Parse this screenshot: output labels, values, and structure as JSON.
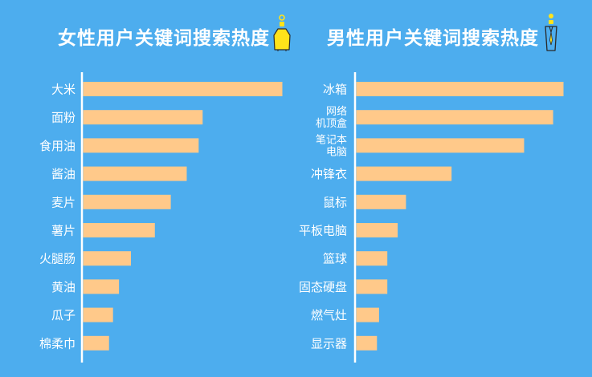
{
  "colors": {
    "background": "#4dadee",
    "bar": "#ffc98a",
    "axis": "#ffffff",
    "text": "#ffffff",
    "female_icon": "#ffe31a",
    "male_icon": "#4dadee"
  },
  "icons": {
    "female": "female-figure-icon",
    "male": "male-figure-icon"
  },
  "chart_data": [
    {
      "type": "bar",
      "orientation": "horizontal",
      "title": "女性用户关键词搜索热度",
      "categories": [
        "大米",
        "面粉",
        "食用油",
        "酱油",
        "麦片",
        "薯片",
        "火腿肠",
        "黄油",
        "瓜子",
        "棉柔巾"
      ],
      "values": [
        100,
        60,
        58,
        52,
        44,
        36,
        24,
        18,
        15,
        13
      ],
      "xlim": [
        0,
        100
      ],
      "grid": false,
      "legend": "none"
    },
    {
      "type": "bar",
      "orientation": "horizontal",
      "title": "男性用户关键词搜索热度",
      "categories": [
        "冰箱",
        "网络\n机顶盒",
        "笔记本\n电脑",
        "冲锋衣",
        "鼠标",
        "平板电脑",
        "篮球",
        "固态硬盘",
        "燃气灶",
        "显示器"
      ],
      "values": [
        100,
        95,
        81,
        46,
        24,
        20,
        15,
        15,
        11,
        10
      ],
      "xlim": [
        0,
        100
      ],
      "grid": false,
      "legend": "none"
    }
  ]
}
